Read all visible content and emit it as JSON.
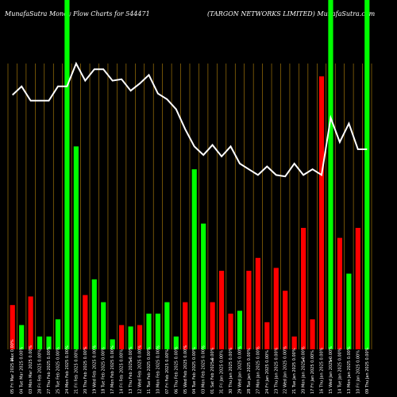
{
  "header": {
    "left_title": "MunafaSutra  Money Flow  Charts for 544471",
    "right_title": "(TARGON  NETWORKS LIMITED) MunafaSutra.com"
  },
  "colors": {
    "background": "#000000",
    "inflow": "#00ff00",
    "outflow": "#ff0000",
    "grid": "#b8860b",
    "line": "#ffffff",
    "text": "#ffffff"
  },
  "chart_data": {
    "type": "bar",
    "title": "",
    "xlabel": "",
    "ylabel": "",
    "grid": true,
    "legend": "none",
    "ylim": [
      0,
      100
    ],
    "categories": [
      "05 Fri Mar 2025 Max 0.00%",
      "04 Tue Mar 2025 0.00%",
      "03 Mon Mar 2025 0.00%",
      "28 Fri Feb 2025 0.00%",
      "27 Thu Feb 2025 0.00%",
      "25 Tue Feb 2025 0.00%",
      "24 Mon Feb 2025 0.00%",
      "21 Fri Feb 2025 0.00%",
      "20 Thu Feb 2025 0.00%",
      "19 Wed Feb 2025 0.00%",
      "18 Tue Feb 2025 0.00%",
      "17 Mon Feb 2025 0.00%",
      "14 Fri Feb 2025 0.00%",
      "13 Thu Feb 2025 0.00%",
      "12 Wed Feb 2025 0.00%",
      "11 Tue Feb 2025 0.00%",
      "10 Mon Feb 2025 0.00%",
      "07 Fri Feb 2025 0.00%",
      "06 Thu Feb 2025 0.00%",
      "05 Wed Feb 2025 0.00%",
      "04 Tue Feb 2025 0.00%",
      "03 Mon Feb 2025 0.00%",
      "01 Sat Feb 2025 0.00%",
      "31 Fri Jan 2025 0.00%",
      "30 Thu Jan 2025 0.00%",
      "29 Wed Jan 2025 0.00%",
      "28 Tue Jan 2025 0.00%",
      "27 Mon Jan 2025 0.00%",
      "24 Fri Jan 2025 0.00%",
      "23 Thu Jan 2025 0.00%",
      "22 Wed Jan 2025 0.00%",
      "21 Tue Jan 2025 0.00%",
      "20 Mon Jan 2025 0.00%",
      "17 Fri Jan 2025 0.00%",
      "16 Thu Jan 2025 0.00%",
      "15 Wed Jan 2025 0.00%",
      "14 Tue Jan 2025 0.00%",
      "13 Mon Jan 2025 0.00%",
      "10 Fri Jan 2025 0.00%",
      "09 Thu Jan 2025 0.00%"
    ],
    "bar_colors": [
      "red",
      "green",
      "red",
      "green",
      "green",
      "green",
      "green",
      "green",
      "red",
      "green",
      "green",
      "green",
      "red",
      "green",
      "red",
      "green",
      "green",
      "green",
      "green",
      "red",
      "green",
      "green",
      "red",
      "red",
      "red",
      "green",
      "red",
      "red",
      "red",
      "red",
      "red",
      "red",
      "red",
      "red",
      "red",
      "green",
      "red",
      "green",
      "red",
      "green"
    ],
    "bar_values": [
      15.5,
      8.5,
      18.5,
      4.5,
      4.5,
      10.5,
      100,
      71,
      19,
      24.5,
      16.5,
      3.5,
      8.5,
      8,
      8.5,
      12.5,
      12.5,
      16.5,
      4.5,
      16.5,
      63,
      44,
      16.5,
      27.5,
      12.5,
      13.5,
      27.5,
      32,
      9.5,
      28.5,
      20.5,
      4.5,
      42.5,
      10.5,
      95.5,
      100,
      39,
      26.5,
      42.5,
      100
    ],
    "line_values": [
      89,
      92,
      87,
      87,
      87,
      92,
      92,
      100,
      94,
      98,
      98,
      94,
      94.5,
      90.5,
      93,
      96,
      89.5,
      87.5,
      84,
      77,
      71,
      68,
      71.5,
      67.5,
      71,
      65,
      63,
      61,
      64,
      61,
      60.5,
      65,
      61,
      63,
      61,
      81,
      72.5,
      79,
      70,
      70
    ]
  },
  "x_labels": [
    "05 Fri Mar 2025 Max 0.00%",
    "04 Tue Mar 2025 0.00%",
    "03 Mon Mar 2025 0.00%",
    "28 Fri Feb 2025 0.00%",
    "27 Thu Feb 2025 0.00%",
    "25 Tue Feb 2025 0.00%",
    "24 Mon Feb 2025 0.00%",
    "21 Fri Feb 2025 0.00%",
    "20 Thu Feb 2025 0.00%",
    "19 Wed Feb 2025 0.00%",
    "18 Tue Feb 2025 0.00%",
    "17 Mon Feb 2025 0.00%",
    "14 Fri Feb 2025 0.00%",
    "13 Thu Feb 2025 0.00%",
    "12 Wed Feb 2025 0.00%",
    "11 Tue Feb 2025 0.00%",
    "10 Mon Feb 2025 0.00%",
    "07 Fri Feb 2025 0.00%",
    "06 Thu Feb 2025 0.00%",
    "05 Wed Feb 2025 0.00%",
    "04 Tue Feb 2025 0.00%",
    "03 Mon Feb 2025 0.00%",
    "01 Sat Feb 2025 0.00%",
    "31 Fri Jan 2025 0.00%",
    "30 Thu Jan 2025 0.00%",
    "29 Wed Jan 2025 0.00%",
    "28 Tue Jan 2025 0.00%",
    "27 Mon Jan 2025 0.00%",
    "24 Fri Jan 2025 0.00%",
    "23 Thu Jan 2025 0.00%",
    "22 Wed Jan 2025 0.00%",
    "21 Tue Jan 2025 0.00%",
    "20 Mon Jan 2025 0.00%",
    "17 Fri Jan 2025 0.00%",
    "16 Thu Jan 2025 0.00%",
    "15 Wed Jan 2025 0.00%",
    "14 Tue Jan 2025 0.00%",
    "13 Mon Jan 2025 0.00%",
    "10 Fri Jan 2025 0.00%",
    "09 Thu Jan 2025 0.00%"
  ],
  "axis_markers": [
    "$",
    "$",
    "$",
    "$",
    "$"
  ]
}
